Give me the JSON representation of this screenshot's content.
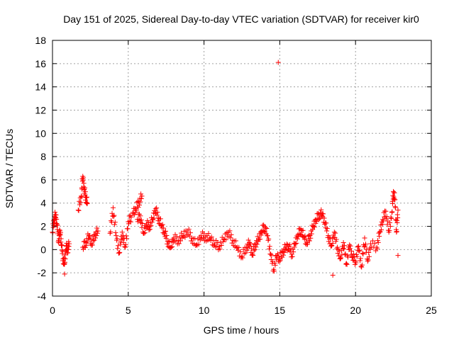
{
  "chart_data": {
    "type": "scatter",
    "title": "Day 151 of 2025, Sidereal Day-to-day VTEC variation (SDTVAR) for receiver kir0",
    "xlabel": "GPS time / hours",
    "ylabel": "SDTVAR / TECUs",
    "xlim": [
      0,
      25
    ],
    "ylim": [
      -4,
      18
    ],
    "xticks": [
      "0",
      "5",
      "10",
      "15",
      "20",
      "25"
    ],
    "yticks": [
      "-4",
      "-2",
      "0",
      "2",
      "4",
      "6",
      "8",
      "10",
      "12",
      "14",
      "16",
      "18"
    ],
    "grid": true,
    "marker": "plus",
    "marker_color": "#ff0000",
    "trace_width": 0.35,
    "outliers": [
      {
        "x": 14.9,
        "y": 16.1
      },
      {
        "x": 0.8,
        "y": -2.1
      },
      {
        "x": 18.5,
        "y": -2.2
      },
      {
        "x": 22.8,
        "y": -0.5
      }
    ],
    "series": [
      {
        "name": "SDTVAR",
        "points": [
          [
            0.0,
            1.5
          ],
          [
            0.1,
            2.6
          ],
          [
            0.2,
            3.0
          ],
          [
            0.3,
            2.2
          ],
          [
            0.4,
            0.8
          ],
          [
            0.5,
            1.6
          ],
          [
            0.6,
            0.4
          ],
          [
            0.7,
            -0.8
          ],
          [
            0.8,
            -1.2
          ],
          [
            0.9,
            0.3
          ],
          [
            1.0,
            0.0
          ],
          [
            1.1,
            0.5
          ],
          [
            1.7,
            3.4
          ],
          [
            1.9,
            4.6
          ],
          [
            2.0,
            6.3
          ],
          [
            2.1,
            5.2
          ],
          [
            2.2,
            4.5
          ],
          [
            2.3,
            4.0
          ],
          [
            2.0,
            0.2
          ],
          [
            2.2,
            0.6
          ],
          [
            2.4,
            1.2
          ],
          [
            2.6,
            0.5
          ],
          [
            2.8,
            1.3
          ],
          [
            3.0,
            1.6
          ],
          [
            3.8,
            1.4
          ],
          [
            4.0,
            3.6
          ],
          [
            4.2,
            1.2
          ],
          [
            4.4,
            -0.3
          ],
          [
            4.6,
            1.5
          ],
          [
            4.8,
            0.2
          ],
          [
            5.0,
            2.4
          ],
          [
            5.2,
            2.8
          ],
          [
            5.3,
            3.2
          ],
          [
            5.5,
            3.5
          ],
          [
            5.7,
            4.1
          ],
          [
            5.9,
            4.6
          ],
          [
            5.6,
            2.6
          ],
          [
            5.8,
            2.9
          ],
          [
            6.0,
            1.4
          ],
          [
            6.2,
            2.2
          ],
          [
            6.4,
            2.0
          ],
          [
            6.6,
            2.6
          ],
          [
            6.8,
            3.5
          ],
          [
            7.0,
            2.7
          ],
          [
            7.2,
            2.1
          ],
          [
            7.4,
            1.5
          ],
          [
            7.6,
            0.7
          ],
          [
            7.8,
            0.2
          ],
          [
            8.0,
            1.0
          ],
          [
            8.3,
            0.8
          ],
          [
            8.6,
            1.2
          ],
          [
            8.9,
            1.6
          ],
          [
            9.2,
            1.0
          ],
          [
            9.5,
            0.4
          ],
          [
            9.8,
            1.2
          ],
          [
            10.1,
            1.1
          ],
          [
            10.4,
            1.0
          ],
          [
            10.7,
            0.5
          ],
          [
            11.0,
            0.3
          ],
          [
            11.3,
            0.9
          ],
          [
            11.6,
            1.5
          ],
          [
            11.9,
            0.8
          ],
          [
            12.2,
            0.2
          ],
          [
            12.5,
            -0.6
          ],
          [
            12.8,
            0.2
          ],
          [
            13.0,
            0.6
          ],
          [
            13.2,
            -0.4
          ],
          [
            13.4,
            0.5
          ],
          [
            13.6,
            0.9
          ],
          [
            13.8,
            1.6
          ],
          [
            14.0,
            2.0
          ],
          [
            14.2,
            1.2
          ],
          [
            14.4,
            -0.4
          ],
          [
            14.6,
            -1.7
          ],
          [
            14.8,
            -0.5
          ],
          [
            15.0,
            -0.8
          ],
          [
            15.2,
            -0.2
          ],
          [
            15.4,
            0.2
          ],
          [
            15.6,
            0.3
          ],
          [
            15.8,
            -0.4
          ],
          [
            16.0,
            0.5
          ],
          [
            16.2,
            1.3
          ],
          [
            16.4,
            1.7
          ],
          [
            16.6,
            1.1
          ],
          [
            16.8,
            0.6
          ],
          [
            17.0,
            1.2
          ],
          [
            17.2,
            2.0
          ],
          [
            17.4,
            2.6
          ],
          [
            17.6,
            3.0
          ],
          [
            17.8,
            3.1
          ],
          [
            18.0,
            2.3
          ],
          [
            18.2,
            1.2
          ],
          [
            18.4,
            0.3
          ],
          [
            18.6,
            1.5
          ],
          [
            18.8,
            0.2
          ],
          [
            19.0,
            -0.8
          ],
          [
            19.2,
            0.6
          ],
          [
            19.4,
            -1.2
          ],
          [
            19.6,
            0.4
          ],
          [
            19.8,
            -0.6
          ],
          [
            20.0,
            -1.0
          ],
          [
            20.2,
            0.3
          ],
          [
            20.4,
            -1.5
          ],
          [
            20.6,
            1.0
          ],
          [
            20.8,
            -1.0
          ],
          [
            21.0,
            0.5
          ],
          [
            21.4,
            0.2
          ],
          [
            21.6,
            1.5
          ],
          [
            21.8,
            2.6
          ],
          [
            22.0,
            3.3
          ],
          [
            22.2,
            1.5
          ],
          [
            22.4,
            3.2
          ],
          [
            22.5,
            5.0
          ],
          [
            22.6,
            4.3
          ],
          [
            22.7,
            1.5
          ],
          [
            22.8,
            3.4
          ]
        ]
      }
    ]
  }
}
